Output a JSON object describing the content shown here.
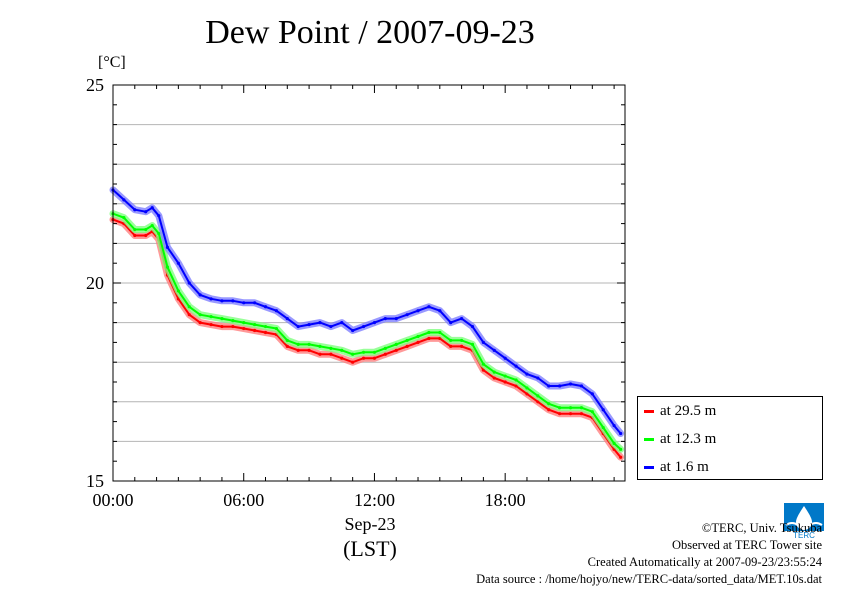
{
  "chart_data": {
    "type": "line",
    "title": "Dew Point / 2007-09-23",
    "ylabel": "[°C]",
    "xlabel": "Sep-23",
    "xlabel2": "(LST)",
    "xlim": [
      0,
      23.5
    ],
    "ylim": [
      15,
      25
    ],
    "xticks": [
      {
        "value": 0,
        "label": "00:00"
      },
      {
        "value": 6,
        "label": "06:00"
      },
      {
        "value": 12,
        "label": "12:00"
      },
      {
        "value": 18,
        "label": "18:00"
      }
    ],
    "yticks": [
      {
        "value": 15,
        "label": "15"
      },
      {
        "value": 20,
        "label": "20"
      },
      {
        "value": 25,
        "label": "25"
      }
    ],
    "grid": true,
    "legend_position": "bottom-right outside",
    "series": [
      {
        "name": "at 29.5 m",
        "color": "#ff0000",
        "x": [
          0,
          0.5,
          1,
          1.5,
          1.8,
          2.1,
          2.5,
          3,
          3.5,
          4,
          4.5,
          5,
          5.5,
          6,
          6.5,
          7,
          7.5,
          8,
          8.5,
          9,
          9.5,
          10,
          10.5,
          11,
          11.5,
          12,
          12.5,
          13,
          13.5,
          14,
          14.5,
          15,
          15.5,
          16,
          16.5,
          17,
          17.5,
          18,
          18.5,
          19,
          19.5,
          20,
          20.5,
          21,
          21.5,
          22,
          22.5,
          23,
          23.3
        ],
        "y": [
          21.6,
          21.5,
          21.2,
          21.2,
          21.3,
          21.1,
          20.2,
          19.6,
          19.2,
          19.0,
          18.95,
          18.9,
          18.9,
          18.85,
          18.8,
          18.75,
          18.7,
          18.4,
          18.3,
          18.3,
          18.2,
          18.2,
          18.1,
          18.0,
          18.1,
          18.1,
          18.2,
          18.3,
          18.4,
          18.5,
          18.6,
          18.6,
          18.4,
          18.4,
          18.3,
          17.8,
          17.6,
          17.5,
          17.4,
          17.2,
          17.0,
          16.8,
          16.7,
          16.7,
          16.7,
          16.6,
          16.2,
          15.8,
          15.6
        ]
      },
      {
        "name": "at 12.3 m",
        "color": "#00ff00",
        "x": [
          0,
          0.5,
          1,
          1.5,
          1.8,
          2.1,
          2.5,
          3,
          3.5,
          4,
          4.5,
          5,
          5.5,
          6,
          6.5,
          7,
          7.5,
          8,
          8.5,
          9,
          9.5,
          10,
          10.5,
          11,
          11.5,
          12,
          12.5,
          13,
          13.5,
          14,
          14.5,
          15,
          15.5,
          16,
          16.5,
          17,
          17.5,
          18,
          18.5,
          19,
          19.5,
          20,
          20.5,
          21,
          21.5,
          22,
          22.5,
          23,
          23.3
        ],
        "y": [
          21.75,
          21.65,
          21.35,
          21.35,
          21.45,
          21.25,
          20.4,
          19.8,
          19.4,
          19.2,
          19.15,
          19.1,
          19.05,
          19.0,
          18.95,
          18.9,
          18.85,
          18.55,
          18.45,
          18.45,
          18.4,
          18.35,
          18.3,
          18.2,
          18.25,
          18.25,
          18.35,
          18.45,
          18.55,
          18.65,
          18.75,
          18.75,
          18.55,
          18.55,
          18.45,
          17.95,
          17.75,
          17.65,
          17.55,
          17.35,
          17.15,
          16.95,
          16.85,
          16.85,
          16.85,
          16.75,
          16.35,
          15.95,
          15.8
        ]
      },
      {
        "name": "at 1.6 m",
        "color": "#0000ff",
        "x": [
          0,
          0.5,
          1,
          1.5,
          1.8,
          2.1,
          2.5,
          3,
          3.5,
          4,
          4.5,
          5,
          5.5,
          6,
          6.5,
          7,
          7.5,
          8,
          8.5,
          9,
          9.5,
          10,
          10.5,
          11,
          11.5,
          12,
          12.5,
          13,
          13.5,
          14,
          14.5,
          15,
          15.5,
          16,
          16.5,
          17,
          17.5,
          18,
          18.5,
          19,
          19.5,
          20,
          20.5,
          21,
          21.5,
          22,
          22.5,
          23,
          23.3
        ],
        "y": [
          22.35,
          22.1,
          21.85,
          21.8,
          21.9,
          21.7,
          20.9,
          20.5,
          20.0,
          19.7,
          19.6,
          19.55,
          19.55,
          19.5,
          19.5,
          19.4,
          19.3,
          19.1,
          18.9,
          18.95,
          19.0,
          18.9,
          19.0,
          18.8,
          18.9,
          19.0,
          19.1,
          19.1,
          19.2,
          19.3,
          19.4,
          19.3,
          19.0,
          19.1,
          18.9,
          18.5,
          18.3,
          18.1,
          17.9,
          17.7,
          17.6,
          17.4,
          17.4,
          17.45,
          17.4,
          17.2,
          16.8,
          16.4,
          16.2
        ]
      }
    ]
  },
  "footer": {
    "copyright": "©TERC, Univ. Tsukuba",
    "observed": "Observed at TERC Tower site",
    "created": "Created Automatically at 2007-09-23/23:55:24",
    "source": "Data source : /home/hojyo/new/TERC-data/sorted_data/MET.10s.dat"
  },
  "logo": {
    "icon": "terc-logo-icon",
    "text": "TERC",
    "color": "#0078c8"
  }
}
